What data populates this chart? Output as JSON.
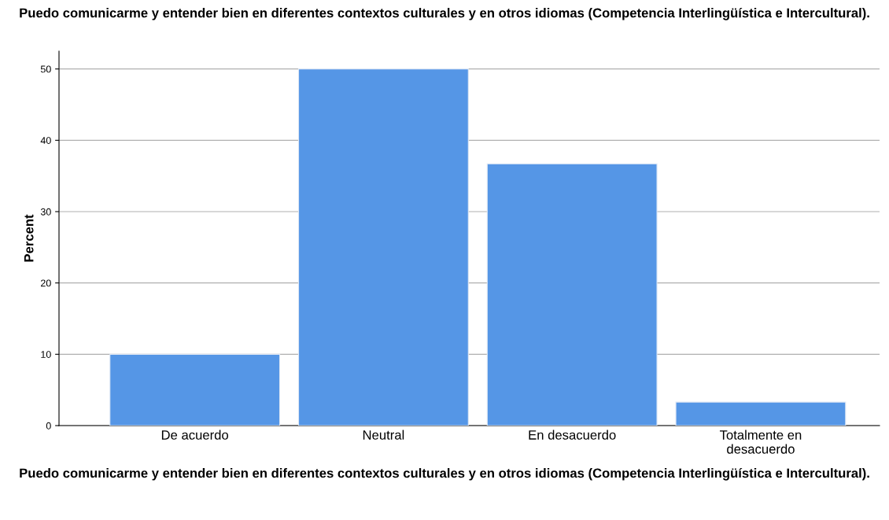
{
  "chart_data": {
    "type": "bar",
    "title": "Puedo comunicarme y entender bien en diferentes contextos culturales y en otros idiomas (Competencia Interlingüística e Intercultural).",
    "xlabel": "Puedo comunicarme y entender bien en diferentes contextos culturales y en otros idiomas (Competencia Interlingüística e Intercultural).",
    "ylabel": "Percent",
    "categories": [
      "De acuerdo",
      "Neutral",
      "En desacuerdo",
      "Totalmente en\ndesacuerdo"
    ],
    "values": [
      10,
      50,
      36.7,
      3.3
    ],
    "color": "#5596e6",
    "ylim": [
      0,
      52.5
    ],
    "yticks": [
      0,
      10,
      20,
      30,
      40,
      50
    ],
    "grid": "y"
  }
}
